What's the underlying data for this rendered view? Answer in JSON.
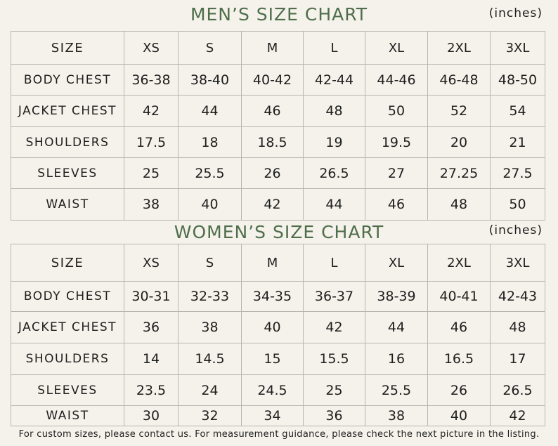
{
  "men": {
    "title": "MEN’S SIZE CHART",
    "unit": "(inches)",
    "header": [
      "SIZE",
      "XS",
      "S",
      "M",
      "L",
      "XL",
      "2XL",
      "3XL"
    ],
    "rows": [
      [
        "BODY CHEST",
        "36-38",
        "38-40",
        "40-42",
        "42-44",
        "44-46",
        "46-48",
        "48-50"
      ],
      [
        "JACKET CHEST",
        "42",
        "44",
        "46",
        "48",
        "50",
        "52",
        "54"
      ],
      [
        "SHOULDERS",
        "17.5",
        "18",
        "18.5",
        "19",
        "19.5",
        "20",
        "21"
      ],
      [
        "SLEEVES",
        "25",
        "25.5",
        "26",
        "26.5",
        "27",
        "27.25",
        "27.5"
      ],
      [
        "WAIST",
        "38",
        "40",
        "42",
        "44",
        "46",
        "48",
        "50"
      ]
    ]
  },
  "women": {
    "title": "WOMEN’S SIZE CHART",
    "unit": "(inches)",
    "header": [
      "SIZE",
      "XS",
      "S",
      "M",
      "L",
      "XL",
      "2XL",
      "3XL"
    ],
    "rows": [
      [
        "BODY CHEST",
        "30-31",
        "32-33",
        "34-35",
        "36-37",
        "38-39",
        "40-41",
        "42-43"
      ],
      [
        "JACKET CHEST",
        "36",
        "38",
        "40",
        "42",
        "44",
        "46",
        "48"
      ],
      [
        "SHOULDERS",
        "14",
        "14.5",
        "15",
        "15.5",
        "16",
        "16.5",
        "17"
      ],
      [
        "SLEEVES",
        "23.5",
        "24",
        "24.5",
        "25",
        "25.5",
        "26",
        "26.5"
      ],
      [
        "WAIST",
        "30",
        "32",
        "34",
        "36",
        "38",
        "40",
        "42"
      ]
    ]
  },
  "footer": "For custom sizes, please contact us. For measurement guidance, please check the next picture in the listing."
}
